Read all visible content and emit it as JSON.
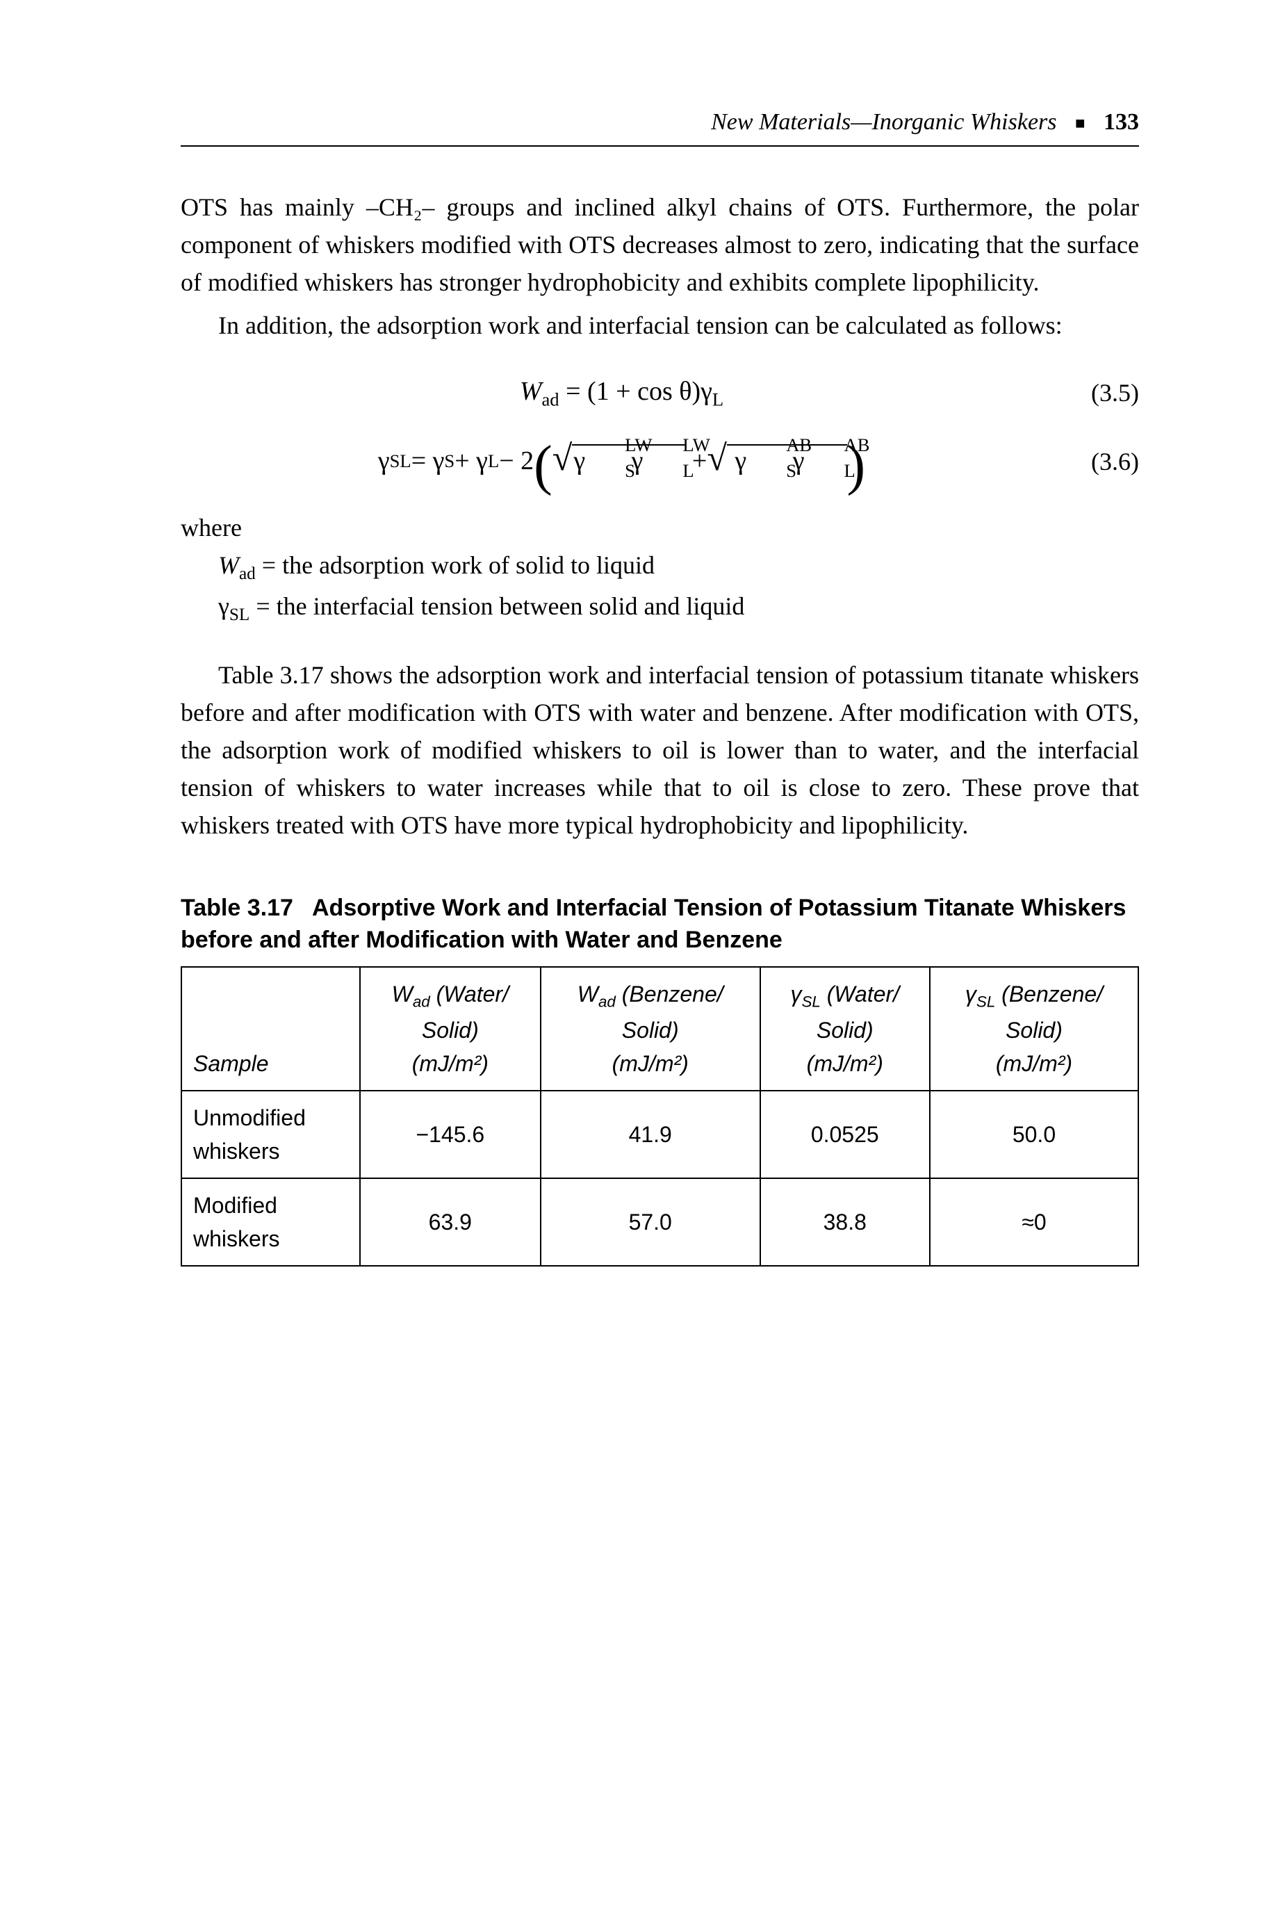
{
  "header": {
    "title": "New Materials—Inorganic Whiskers",
    "page": "133"
  },
  "para1": "OTS has mainly –CH₂– groups and inclined alkyl chains of OTS. Furthermore, the polar component of whiskers modified with OTS decreases almost to zero, indicating that the surface of modified whiskers has stronger hydrophobicity and exhibits complete lipophilicity.",
  "para2": "In addition, the adsorption work and interfacial tension can be calculated as follows:",
  "eq1": {
    "text": "Wₐd = (1 + cos θ)γL",
    "num": "(3.5)"
  },
  "eq2": {
    "num": "(3.6)"
  },
  "where_label": "where",
  "where1_sym": "Wₐd",
  "where1_def": " = the adsorption work of solid to liquid",
  "where2_sym": "γSL",
  "where2_def": " = the interfacial tension between solid and liquid",
  "para3": "Table 3.17 shows the adsorption work and interfacial ten­sion of potassium titanate whiskers before and after modifi­cation with OTS with water and benzene. After modification with OTS, the adsorption work of modified whiskers to oil is lower than to water, and the interfacial tension of whiskers to water increases while that to oil is close to zero. These prove that whiskers treated with OTS have more typical hydropho­bicity and lipophilicity.",
  "table": {
    "caption_prefix": "Table 3.17",
    "caption_rest": " Adsorptive Work and Interfacial Tension of Potassium Titanate Whiskers before and after Modification with Water and Benzene",
    "columns": {
      "c0": "Sample",
      "c1a": "W",
      "c1b": "ad",
      "c1c": " (Water/\nSolid)\n(mJ/m²)",
      "c2a": "W",
      "c2b": "ad",
      "c2c": " (Benzene/\nSolid)\n(mJ/m²)",
      "c3a": "γ",
      "c3b": "SL",
      "c3c": " (Water/\nSolid)\n(mJ/m²)",
      "c4a": "γ",
      "c4b": "SL",
      "c4c": " (Benzene/\nSolid)\n(mJ/m²)"
    },
    "rows": [
      {
        "sample": "Unmodified\nwhiskers",
        "c1": "−145.6",
        "c2": "41.9",
        "c3": "0.0525",
        "c4": "50.0"
      },
      {
        "sample": "Modified\nwhiskers",
        "c1": "63.9",
        "c2": "57.0",
        "c3": "38.8",
        "c4": "≈0"
      }
    ]
  }
}
